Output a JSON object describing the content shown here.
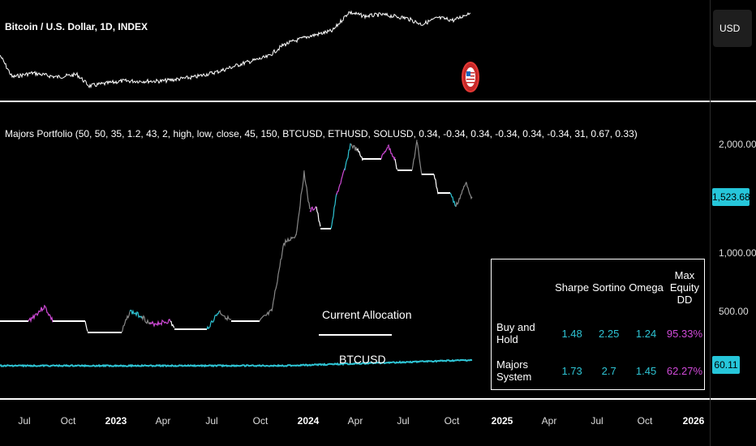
{
  "header": {
    "symbol_title": "Bitcoin / U.S. Dollar, 1D, INDEX",
    "currency_button": "USD"
  },
  "indicator": {
    "title": "Majors Portfolio (50, 50, 35, 1.2, 43, 2, high, low, close, 45, 150, BTCUSD, ETHUSD, SOLUSD, 0.34, -0.34, 0.34, -0.34, 0.34, -0.34, 31, 0.67, 0.33)"
  },
  "y_axis": {
    "ticks": [
      "2,000.00",
      "1,000.00",
      "500.00"
    ],
    "current_value_badge": "1,523.68",
    "allocation_badge": "60.11"
  },
  "x_axis": {
    "ticks": [
      {
        "label": "Jul",
        "bold": false
      },
      {
        "label": "Oct",
        "bold": false
      },
      {
        "label": "2023",
        "bold": true
      },
      {
        "label": "Apr",
        "bold": false
      },
      {
        "label": "Jul",
        "bold": false
      },
      {
        "label": "Oct",
        "bold": false
      },
      {
        "label": "2024",
        "bold": true
      },
      {
        "label": "Apr",
        "bold": false
      },
      {
        "label": "Jul",
        "bold": false
      },
      {
        "label": "Oct",
        "bold": false
      },
      {
        "label": "2025",
        "bold": true
      },
      {
        "label": "Apr",
        "bold": false
      },
      {
        "label": "Jul",
        "bold": false
      },
      {
        "label": "Oct",
        "bold": false
      },
      {
        "label": "2026",
        "bold": true
      }
    ]
  },
  "allocation": {
    "title": "Current Allocation",
    "asset": "BTCUSD"
  },
  "stats_table": {
    "headers": [
      "",
      "Sharpe",
      "Sortino",
      "Omega",
      "Max Equity DD"
    ],
    "rows": [
      {
        "label": "Buy and Hold",
        "sharpe": "1.48",
        "sortino": "2.25",
        "omega": "1.24",
        "max_dd": "95.33%"
      },
      {
        "label": "Majors System",
        "sharpe": "1.73",
        "sortino": "2.7",
        "omega": "1.45",
        "max_dd": "62.27%"
      }
    ]
  },
  "colors": {
    "cyan": "#2ec4d4",
    "magenta": "#d04ad8",
    "white": "#ffffff",
    "gray": "#888888"
  }
}
